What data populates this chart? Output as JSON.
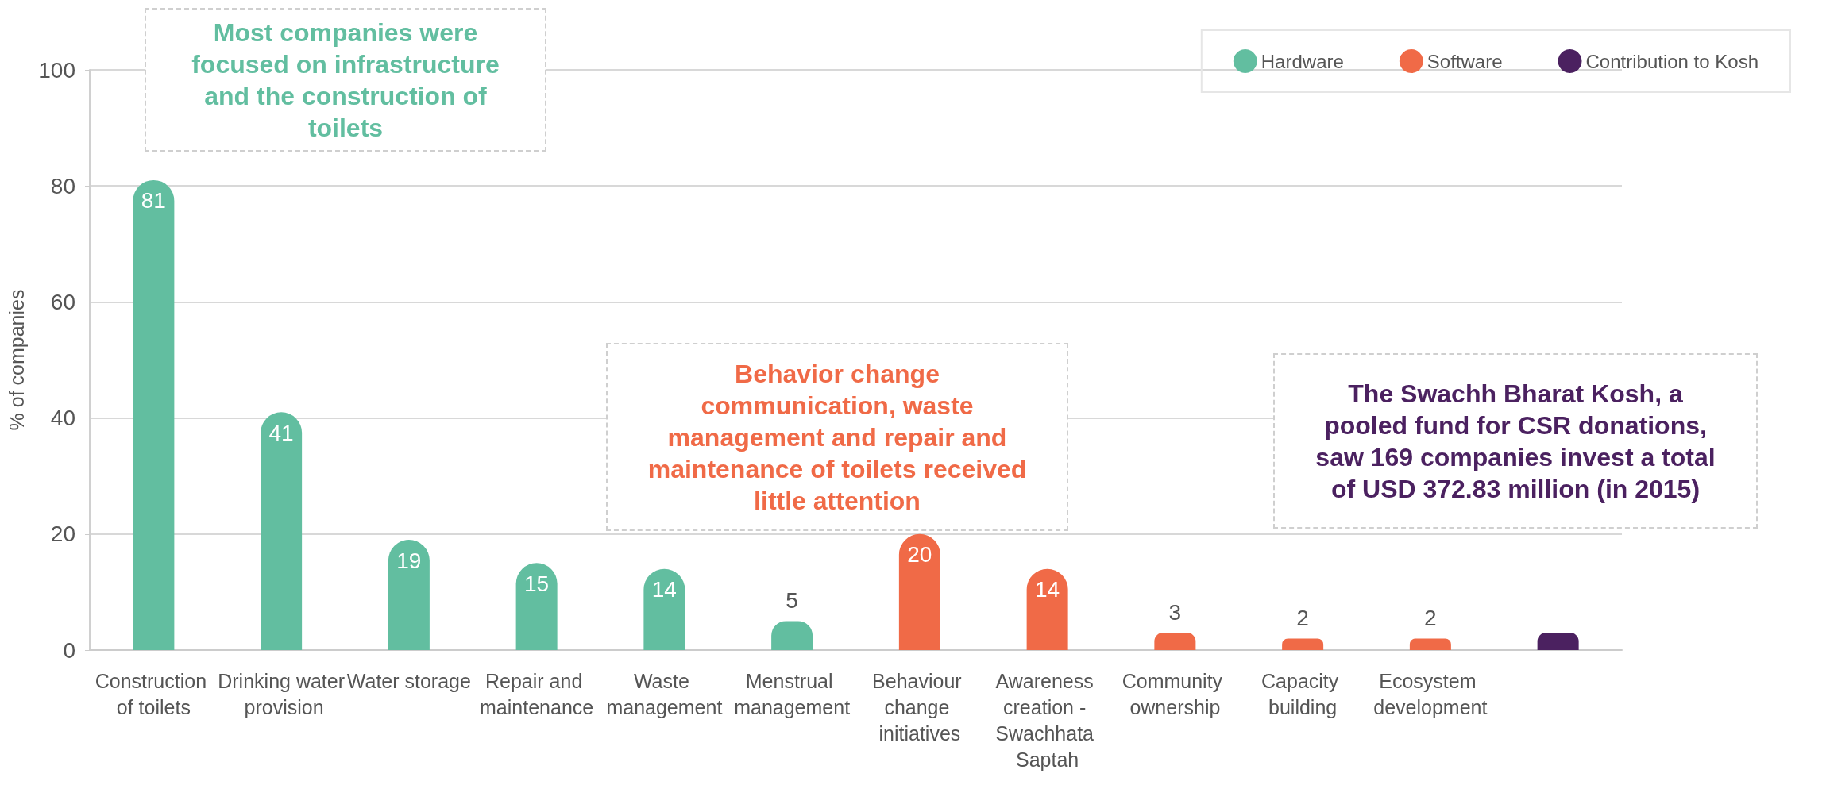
{
  "chart_data": {
    "type": "bar",
    "categories": [
      "Construction of toilets",
      "Drinking water provision",
      "Water storage",
      "Repair and maintenance",
      "Waste management",
      "Menstrual management",
      "Behaviour change initiatives",
      "Awareness creation - Swachhata Saptah",
      "Community ownership",
      "Capacity building",
      "Ecosystem development",
      null
    ],
    "ylabel": "% of companies",
    "series": [
      {
        "name": "Hardware",
        "color": "#62bea0",
        "values": [
          81,
          41,
          19,
          15,
          14,
          5,
          null,
          null,
          null,
          null,
          null,
          null
        ],
        "value_labels": [
          "81",
          "41",
          "19",
          "15",
          "14",
          "5",
          null,
          null,
          null,
          null,
          null,
          null
        ]
      },
      {
        "name": "Software",
        "color": "#f06a47",
        "values": [
          null,
          null,
          null,
          null,
          null,
          null,
          20,
          14,
          3,
          2,
          2,
          null
        ],
        "value_labels": [
          null,
          null,
          null,
          null,
          null,
          null,
          "20",
          "14",
          "3",
          "2",
          "2",
          null
        ]
      },
      {
        "name": "Contribution to Kosh",
        "color": "#4b2160",
        "values": [
          null,
          null,
          null,
          null,
          null,
          null,
          null,
          null,
          null,
          null,
          null,
          3
        ],
        "value_labels": [
          null,
          null,
          null,
          null,
          null,
          null,
          null,
          null,
          null,
          null,
          null,
          null
        ]
      }
    ],
    "ylim": [
      0,
      100
    ],
    "yticks": [
      0,
      20,
      40,
      60,
      80,
      100
    ],
    "grid": "y",
    "legend": "top right",
    "annotations": [
      "Most companies were focused on infrastructure and the construction of toilets",
      "Behavior change communication, waste management and repair and maintenance of toilets received little attention",
      "The Swachh Bharat Kosh, a pooled fund for CSR donations, saw 169 companies invest a total of USD 372.83 million (in 2015)"
    ]
  }
}
